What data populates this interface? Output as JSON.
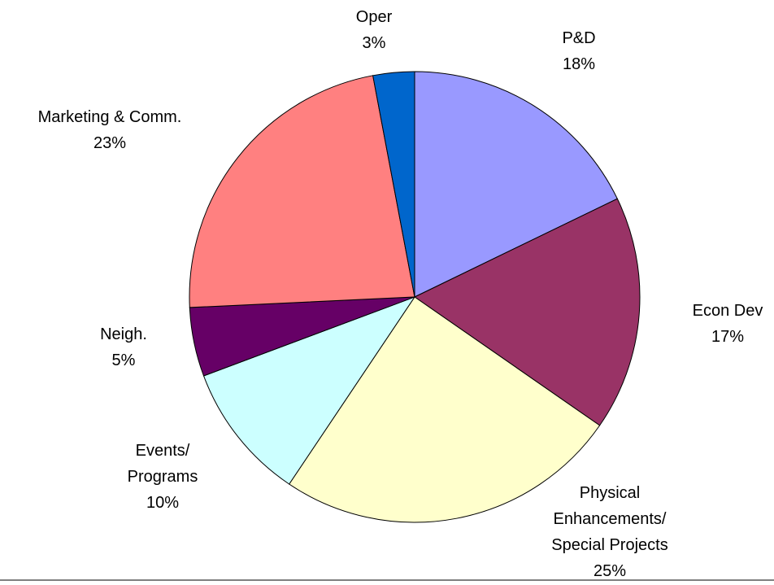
{
  "chart_data": {
    "type": "pie",
    "categories": [
      "P&D",
      "Econ Dev",
      "Physical\nEnhancements/\nSpecial Projects",
      "Events/\nPrograms",
      "Neigh.",
      "Marketing & Comm.",
      "Oper"
    ],
    "values": [
      18,
      17,
      25,
      10,
      5,
      23,
      3
    ],
    "value_labels": [
      "18%",
      "17%",
      "25%",
      "10%",
      "5%",
      "23%",
      "3%"
    ],
    "colors": [
      "#9999ff",
      "#993366",
      "#ffffcc",
      "#ccffff",
      "#660066",
      "#ff8080",
      "#0066cc"
    ]
  }
}
